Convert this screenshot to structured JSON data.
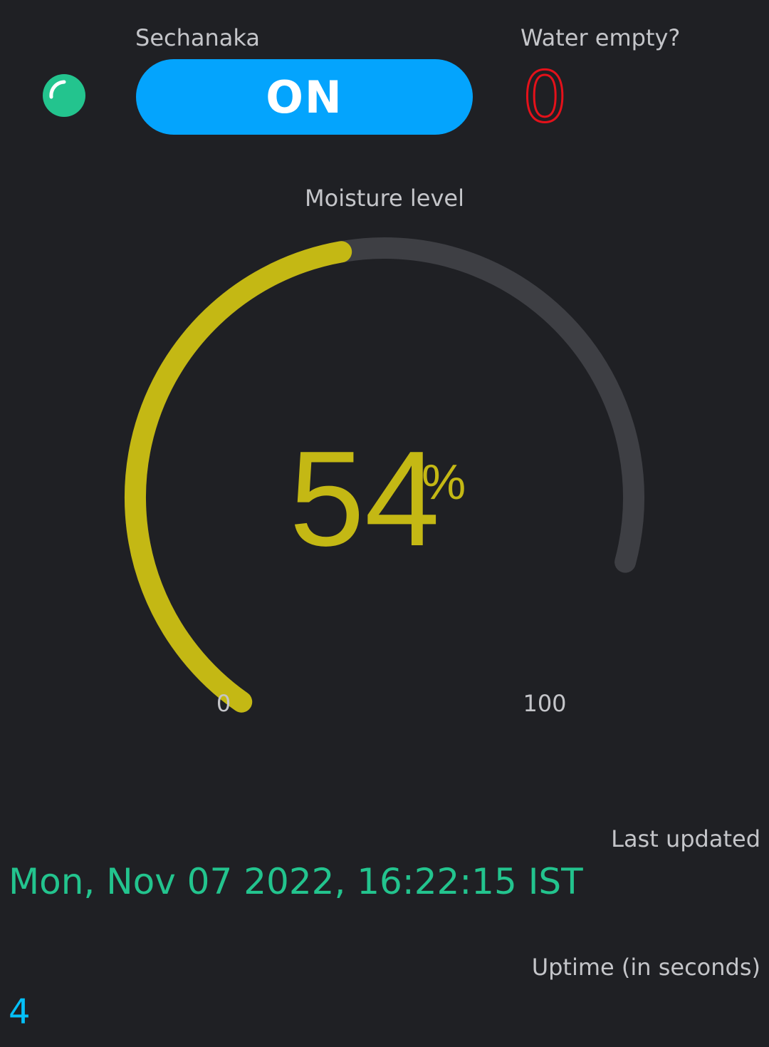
{
  "toggle": {
    "label": "Sechanaka",
    "state": "ON",
    "color": "#04a4fd"
  },
  "led": {
    "color": "#23c48e",
    "icon": "led-icon"
  },
  "water": {
    "label": "Water empty?",
    "value": "0",
    "color": "#e4111a"
  },
  "gauge": {
    "label": "Moisture level",
    "value": 54,
    "value_text": "54",
    "unit": "%",
    "min": 0,
    "max": 100,
    "min_label": "0",
    "max_label": "100",
    "color": "#c4b814",
    "track_color": "#3e3f44"
  },
  "last_updated": {
    "label": "Last updated",
    "value": "Mon, Nov 07 2022, 16:22:15 IST",
    "color": "#23c48e"
  },
  "uptime": {
    "label": "Uptime (in seconds)",
    "value": "4",
    "color": "#04c0f8"
  }
}
